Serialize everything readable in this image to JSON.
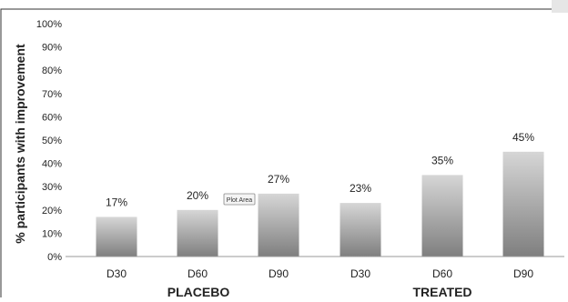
{
  "chart_data": {
    "type": "bar",
    "ylabel": "% participants with improvement",
    "ylim": [
      0,
      100
    ],
    "yticks": [
      "0%",
      "10%",
      "20%",
      "30%",
      "40%",
      "50%",
      "60%",
      "70%",
      "80%",
      "90%",
      "100%"
    ],
    "categories": [
      "D30",
      "D60",
      "D90",
      "D30",
      "D60",
      "D90"
    ],
    "values": [
      17,
      20,
      27,
      23,
      35,
      45
    ],
    "data_labels": [
      "17%",
      "20%",
      "27%",
      "23%",
      "35%",
      "45%"
    ],
    "groups": [
      {
        "label": "PLACEBO",
        "categories": [
          "D30",
          "D60",
          "D90"
        ]
      },
      {
        "label": "TREATED",
        "categories": [
          "D30",
          "D60",
          "D90"
        ]
      }
    ],
    "grid": false,
    "legend": "none"
  },
  "tooltip": {
    "text": "Plot Area"
  },
  "colors": {
    "bar_top": "#d6d6d6",
    "bar_bottom": "#7f7f7f",
    "frame": "#333333"
  }
}
